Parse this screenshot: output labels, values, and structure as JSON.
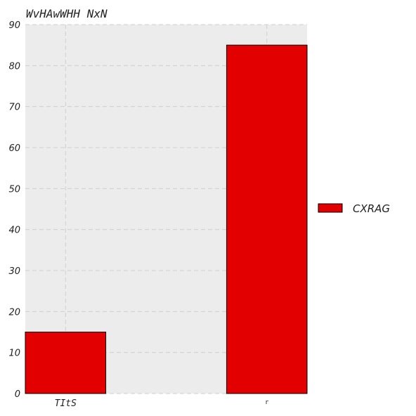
{
  "chart_data": {
    "type": "bar",
    "title": "WvHAwWHH NxN",
    "categories": [
      "TItS",
      "r"
    ],
    "series": [
      {
        "name": "CXRAG",
        "values": [
          15,
          85
        ],
        "color": "#e30000"
      }
    ],
    "xlabel": "",
    "ylabel": "",
    "ylim": [
      0,
      90
    ],
    "yticks": [
      0,
      10,
      20,
      30,
      40,
      50,
      60,
      70,
      80,
      90
    ],
    "grid": true,
    "legend_position": "right",
    "background": "#ececec"
  }
}
